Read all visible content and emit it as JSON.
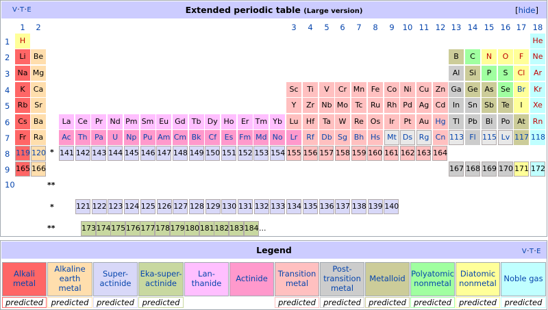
{
  "header": {
    "vte": [
      "V",
      "T",
      "E"
    ],
    "title": "Extended periodic table",
    "subtitle": "(Large version)",
    "hide_label": "hide"
  },
  "groups": [
    "1",
    "2",
    "3",
    "4",
    "5",
    "6",
    "7",
    "8",
    "9",
    "10",
    "11",
    "12",
    "13",
    "14",
    "15",
    "16",
    "17",
    "18"
  ],
  "periods": [
    "1",
    "2",
    "3",
    "4",
    "5",
    "6",
    "7",
    "8",
    "9",
    "10"
  ],
  "stars": [
    "*",
    "**",
    "*",
    "**"
  ],
  "colors": {
    "alkali": "#ff6666",
    "alkaline": "#ffdead",
    "superactinide": "#d8d8f8",
    "ekasuperactinide": "#c8d8a0",
    "lanthanide": "#ffbfff",
    "actinide": "#ff99cc",
    "transition": "#ffc0c0",
    "post_transition": "#cccccc",
    "metalloid": "#cccc99",
    "polyatomic": "#a0ffa0",
    "diatomic": "#ffff99",
    "noble": "#c0ffff",
    "unknown_pred": "#e8e8e8"
  },
  "elements": [
    {
      "s": "H",
      "cat": "diatomic",
      "r": 0,
      "c": 0,
      "t": "gas"
    },
    {
      "s": "He",
      "cat": "noble",
      "r": 0,
      "c": 17,
      "t": "gas"
    },
    {
      "s": "Li",
      "cat": "alkali",
      "r": 1,
      "c": 0,
      "t": "solid"
    },
    {
      "s": "Be",
      "cat": "alkaline",
      "r": 1,
      "c": 1,
      "t": "solid"
    },
    {
      "s": "B",
      "cat": "metalloid",
      "r": 1,
      "c": 12,
      "t": "solid"
    },
    {
      "s": "C",
      "cat": "polyatomic",
      "r": 1,
      "c": 13,
      "t": "solid"
    },
    {
      "s": "N",
      "cat": "diatomic",
      "r": 1,
      "c": 14,
      "t": "gas"
    },
    {
      "s": "O",
      "cat": "diatomic",
      "r": 1,
      "c": 15,
      "t": "gas"
    },
    {
      "s": "F",
      "cat": "diatomic",
      "r": 1,
      "c": 16,
      "t": "gas"
    },
    {
      "s": "Ne",
      "cat": "noble",
      "r": 1,
      "c": 17,
      "t": "gas"
    },
    {
      "s": "Na",
      "cat": "alkali",
      "r": 2,
      "c": 0,
      "t": "solid"
    },
    {
      "s": "Mg",
      "cat": "alkaline",
      "r": 2,
      "c": 1,
      "t": "solid"
    },
    {
      "s": "Al",
      "cat": "post_transition",
      "r": 2,
      "c": 12,
      "t": "solid"
    },
    {
      "s": "Si",
      "cat": "metalloid",
      "r": 2,
      "c": 13,
      "t": "solid"
    },
    {
      "s": "P",
      "cat": "polyatomic",
      "r": 2,
      "c": 14,
      "t": "solid"
    },
    {
      "s": "S",
      "cat": "polyatomic",
      "r": 2,
      "c": 15,
      "t": "solid"
    },
    {
      "s": "Cl",
      "cat": "diatomic",
      "r": 2,
      "c": 16,
      "t": "gas"
    },
    {
      "s": "Ar",
      "cat": "noble",
      "r": 2,
      "c": 17,
      "t": "gas"
    },
    {
      "s": "K",
      "cat": "alkali",
      "r": 3,
      "c": 0,
      "t": "solid"
    },
    {
      "s": "Ca",
      "cat": "alkaline",
      "r": 3,
      "c": 1,
      "t": "solid"
    },
    {
      "s": "Sc",
      "cat": "transition",
      "r": 3,
      "c": 2,
      "t": "solid"
    },
    {
      "s": "Ti",
      "cat": "transition",
      "r": 3,
      "c": 3,
      "t": "solid"
    },
    {
      "s": "V",
      "cat": "transition",
      "r": 3,
      "c": 4,
      "t": "solid"
    },
    {
      "s": "Cr",
      "cat": "transition",
      "r": 3,
      "c": 5,
      "t": "solid"
    },
    {
      "s": "Mn",
      "cat": "transition",
      "r": 3,
      "c": 6,
      "t": "solid"
    },
    {
      "s": "Fe",
      "cat": "transition",
      "r": 3,
      "c": 7,
      "t": "solid"
    },
    {
      "s": "Co",
      "cat": "transition",
      "r": 3,
      "c": 8,
      "t": "solid"
    },
    {
      "s": "Ni",
      "cat": "transition",
      "r": 3,
      "c": 9,
      "t": "solid"
    },
    {
      "s": "Cu",
      "cat": "transition",
      "r": 3,
      "c": 10,
      "t": "solid"
    },
    {
      "s": "Zn",
      "cat": "transition",
      "r": 3,
      "c": 11,
      "t": "solid"
    },
    {
      "s": "Ga",
      "cat": "post_transition",
      "r": 3,
      "c": 12,
      "t": "solid"
    },
    {
      "s": "Ge",
      "cat": "metalloid",
      "r": 3,
      "c": 13,
      "t": "solid"
    },
    {
      "s": "As",
      "cat": "metalloid",
      "r": 3,
      "c": 14,
      "t": "solid"
    },
    {
      "s": "Se",
      "cat": "polyatomic",
      "r": 3,
      "c": 15,
      "t": "solid"
    },
    {
      "s": "Br",
      "cat": "diatomic",
      "r": 3,
      "c": 16,
      "t": "liquid"
    },
    {
      "s": "Kr",
      "cat": "noble",
      "r": 3,
      "c": 17,
      "t": "gas"
    },
    {
      "s": "Rb",
      "cat": "alkali",
      "r": 4,
      "c": 0,
      "t": "solid"
    },
    {
      "s": "Sr",
      "cat": "alkaline",
      "r": 4,
      "c": 1,
      "t": "solid"
    },
    {
      "s": "Y",
      "cat": "transition",
      "r": 4,
      "c": 2,
      "t": "solid"
    },
    {
      "s": "Zr",
      "cat": "transition",
      "r": 4,
      "c": 3,
      "t": "solid"
    },
    {
      "s": "Nb",
      "cat": "transition",
      "r": 4,
      "c": 4,
      "t": "solid"
    },
    {
      "s": "Mo",
      "cat": "transition",
      "r": 4,
      "c": 5,
      "t": "solid"
    },
    {
      "s": "Tc",
      "cat": "transition",
      "r": 4,
      "c": 6,
      "t": "solid"
    },
    {
      "s": "Ru",
      "cat": "transition",
      "r": 4,
      "c": 7,
      "t": "solid"
    },
    {
      "s": "Rh",
      "cat": "transition",
      "r": 4,
      "c": 8,
      "t": "solid"
    },
    {
      "s": "Pd",
      "cat": "transition",
      "r": 4,
      "c": 9,
      "t": "solid"
    },
    {
      "s": "Ag",
      "cat": "transition",
      "r": 4,
      "c": 10,
      "t": "solid"
    },
    {
      "s": "Cd",
      "cat": "transition",
      "r": 4,
      "c": 11,
      "t": "solid"
    },
    {
      "s": "In",
      "cat": "post_transition",
      "r": 4,
      "c": 12,
      "t": "solid"
    },
    {
      "s": "Sn",
      "cat": "post_transition",
      "r": 4,
      "c": 13,
      "t": "solid"
    },
    {
      "s": "Sb",
      "cat": "metalloid",
      "r": 4,
      "c": 14,
      "t": "solid"
    },
    {
      "s": "Te",
      "cat": "metalloid",
      "r": 4,
      "c": 15,
      "t": "solid"
    },
    {
      "s": "I",
      "cat": "diatomic",
      "r": 4,
      "c": 16,
      "t": "solid"
    },
    {
      "s": "Xe",
      "cat": "noble",
      "r": 4,
      "c": 17,
      "t": "gas"
    },
    {
      "s": "Cs",
      "cat": "alkali",
      "r": 5,
      "c": 0,
      "t": "solid"
    },
    {
      "s": "Ba",
      "cat": "alkaline",
      "r": 5,
      "c": 1,
      "t": "solid"
    },
    {
      "s": "Lu",
      "cat": "transition",
      "r": 5,
      "c": 2,
      "t": "solid"
    },
    {
      "s": "Hf",
      "cat": "transition",
      "r": 5,
      "c": 3,
      "t": "solid"
    },
    {
      "s": "Ta",
      "cat": "transition",
      "r": 5,
      "c": 4,
      "t": "solid"
    },
    {
      "s": "W",
      "cat": "transition",
      "r": 5,
      "c": 5,
      "t": "solid"
    },
    {
      "s": "Re",
      "cat": "transition",
      "r": 5,
      "c": 6,
      "t": "solid"
    },
    {
      "s": "Os",
      "cat": "transition",
      "r": 5,
      "c": 7,
      "t": "solid"
    },
    {
      "s": "Ir",
      "cat": "transition",
      "r": 5,
      "c": 8,
      "t": "solid"
    },
    {
      "s": "Pt",
      "cat": "transition",
      "r": 5,
      "c": 9,
      "t": "solid"
    },
    {
      "s": "Au",
      "cat": "transition",
      "r": 5,
      "c": 10,
      "t": "solid"
    },
    {
      "s": "Hg",
      "cat": "transition",
      "r": 5,
      "c": 11,
      "t": "liquid"
    },
    {
      "s": "Tl",
      "cat": "post_transition",
      "r": 5,
      "c": 12,
      "t": "solid"
    },
    {
      "s": "Pb",
      "cat": "post_transition",
      "r": 5,
      "c": 13,
      "t": "solid"
    },
    {
      "s": "Bi",
      "cat": "post_transition",
      "r": 5,
      "c": 14,
      "t": "solid"
    },
    {
      "s": "Po",
      "cat": "post_transition",
      "r": 5,
      "c": 15,
      "t": "solid"
    },
    {
      "s": "At",
      "cat": "metalloid",
      "r": 5,
      "c": 16,
      "t": "solid"
    },
    {
      "s": "Rn",
      "cat": "noble",
      "r": 5,
      "c": 17,
      "t": "gas"
    },
    {
      "s": "Fr",
      "cat": "alkali",
      "r": 6,
      "c": 0,
      "t": "solid"
    },
    {
      "s": "Ra",
      "cat": "alkaline",
      "r": 6,
      "c": 1,
      "t": "solid"
    },
    {
      "s": "Lr",
      "cat": "actinide",
      "r": 6,
      "c": 2,
      "t": "synth"
    },
    {
      "s": "Rf",
      "cat": "transition",
      "r": 6,
      "c": 3,
      "t": "synth"
    },
    {
      "s": "Db",
      "cat": "transition",
      "r": 6,
      "c": 4,
      "t": "synth"
    },
    {
      "s": "Sg",
      "cat": "transition",
      "r": 6,
      "c": 5,
      "t": "synth"
    },
    {
      "s": "Bh",
      "cat": "transition",
      "r": 6,
      "c": 6,
      "t": "synth"
    },
    {
      "s": "Hs",
      "cat": "transition",
      "r": 6,
      "c": 7,
      "t": "synth"
    },
    {
      "s": "Mt",
      "cat": "unknown_pred",
      "r": 6,
      "c": 8,
      "t": "synth"
    },
    {
      "s": "Ds",
      "cat": "unknown_pred",
      "r": 6,
      "c": 9,
      "t": "synth"
    },
    {
      "s": "Rg",
      "cat": "unknown_pred",
      "r": 6,
      "c": 10,
      "t": "synth"
    },
    {
      "s": "Cn",
      "cat": "transition",
      "r": 6,
      "c": 11,
      "t": "synth"
    },
    {
      "s": "113",
      "cat": "unknown_pred",
      "r": 6,
      "c": 12,
      "t": "synth"
    },
    {
      "s": "Fl",
      "cat": "post_transition",
      "r": 6,
      "c": 13,
      "t": "synth"
    },
    {
      "s": "115",
      "cat": "unknown_pred",
      "r": 6,
      "c": 14,
      "t": "synth"
    },
    {
      "s": "Lv",
      "cat": "unknown_pred",
      "r": 6,
      "c": 15,
      "t": "synth"
    },
    {
      "s": "117",
      "cat": "metalloid",
      "r": 6,
      "c": 16,
      "t": "synth"
    },
    {
      "s": "118",
      "cat": "noble",
      "r": 6,
      "c": 17,
      "t": "synth"
    }
  ],
  "lanthanides": [
    "La",
    "Ce",
    "Pr",
    "Nd",
    "Pm",
    "Sm",
    "Eu",
    "Gd",
    "Tb",
    "Dy",
    "Ho",
    "Er",
    "Tm",
    "Yb"
  ],
  "actinides": [
    "Ac",
    "Th",
    "Pa",
    "U",
    "Np",
    "Pu",
    "Am",
    "Cm",
    "Bk",
    "Cf",
    "Es",
    "Fm",
    "Md",
    "No"
  ],
  "period8": {
    "first": [
      {
        "s": "119",
        "cat": "alkali"
      },
      {
        "s": "120",
        "cat": "alkaline"
      }
    ],
    "row": [
      "141",
      "142",
      "143",
      "144",
      "145",
      "146",
      "147",
      "148",
      "149",
      "150",
      "151",
      "152",
      "153",
      "154",
      "155",
      "156",
      "157",
      "158",
      "159",
      "160",
      "161",
      "162",
      "163",
      "164"
    ]
  },
  "period9": {
    "first": [
      {
        "s": "165",
        "cat": "alkali"
      },
      {
        "s": "166",
        "cat": "alkaline"
      }
    ],
    "right": [
      "167",
      "168",
      "169",
      "170",
      "171",
      "172"
    ]
  },
  "superactinides": [
    "121",
    "122",
    "123",
    "124",
    "125",
    "126",
    "127",
    "128",
    "129",
    "130",
    "131",
    "132",
    "133",
    "134",
    "135",
    "136",
    "137",
    "138",
    "139",
    "140"
  ],
  "ekasuperactinides": [
    "173",
    "174",
    "175",
    "176",
    "177",
    "178",
    "179",
    "180",
    "181",
    "182",
    "183",
    "184"
  ],
  "ellipsis": "...",
  "legend": {
    "vte": [
      "V",
      "T",
      "E"
    ],
    "title": "Legend",
    "cells": [
      {
        "label": "Alkali metal",
        "color": "#ff6666",
        "pred": "predicted",
        "pred_color": "#ff6666"
      },
      {
        "label": "Alkaline earth metal",
        "color": "#ffdead",
        "pred": "predicted",
        "pred_color": "#ffdead"
      },
      {
        "label": "Super-actinide",
        "color": "#d8d8f8",
        "pred": "predicted",
        "pred_color": "#d8d8f8"
      },
      {
        "label": "Eka-super-actinide",
        "color": "#c8d8a0",
        "pred": "predicted",
        "pred_color": "#c8d8a0"
      },
      {
        "label": "Lan-thanide",
        "color": "#ffbfff",
        "pred": "",
        "pred_color": ""
      },
      {
        "label": "Actinide",
        "color": "#ff99cc",
        "pred": "",
        "pred_color": ""
      },
      {
        "label": "Transition metal",
        "color": "#ffc0c0",
        "pred": "predicted",
        "pred_color": "#ffc0c0"
      },
      {
        "label": "Post-transition metal",
        "color": "#cccccc",
        "pred": "predicted",
        "pred_color": "#cccccc"
      },
      {
        "label": "Metalloid",
        "color": "#cccc99",
        "pred": "predicted",
        "pred_color": "#cccc99"
      },
      {
        "label": "Polyatomic nonmetal",
        "color": "#a0ffa0",
        "pred": "predicted",
        "pred_color": "#a0ffa0"
      },
      {
        "label": "Diatomic nonmetal",
        "color": "#ffff99",
        "pred": "predicted",
        "pred_color": "#ffff99"
      },
      {
        "label": "Noble gas",
        "color": "#c0ffff",
        "pred": "predicted",
        "pred_color": "#c0ffff"
      }
    ]
  }
}
